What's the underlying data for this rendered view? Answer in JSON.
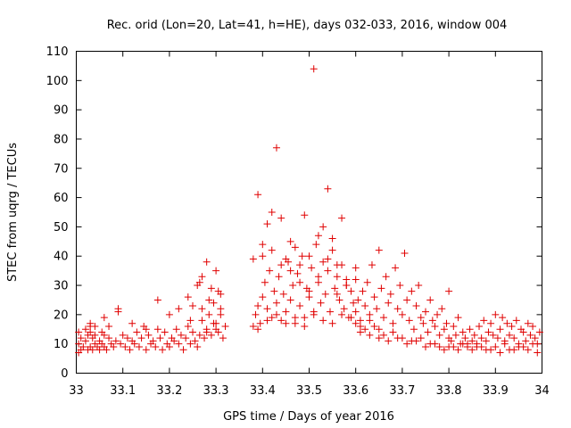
{
  "chart_data": {
    "type": "scatter",
    "title": "Rec. orid (Lon=20, Lat=41, h=HE), days 032-033, 2016, window 004",
    "xlabel": "GPS time / Days of year 2016",
    "ylabel": "STEC from uqrg / TECUs",
    "xlim": [
      33,
      34
    ],
    "ylim": [
      0,
      110
    ],
    "xticks": [
      "33",
      "33.1",
      "33.2",
      "33.3",
      "33.4",
      "33.5",
      "33.6",
      "33.7",
      "33.8",
      "33.9",
      "34"
    ],
    "yticks": [
      "0",
      "10",
      "20",
      "30",
      "40",
      "50",
      "60",
      "70",
      "80",
      "90",
      "100",
      "110"
    ],
    "grid": false,
    "legend": "none",
    "marker": "plus",
    "color": "#e00000",
    "series": [
      {
        "x": [
          33.005,
          33.005,
          33.005,
          33.01,
          33.01,
          33.015,
          33.02,
          33.02,
          33.025,
          33.025,
          33.03,
          33.03,
          33.03,
          33.035,
          33.035,
          33.04,
          33.04,
          33.04,
          33.045,
          33.05,
          33.05,
          33.055,
          33.055,
          33.06,
          33.06,
          33.065,
          33.07,
          33.07,
          33.075,
          33.08,
          33.085,
          33.09,
          33.095,
          33.1,
          33.105,
          33.11,
          33.115,
          33.12,
          33.125,
          33.13,
          33.135,
          33.14,
          33.145,
          33.15,
          33.155,
          33.16,
          33.165,
          33.17,
          33.175,
          33.18,
          33.185,
          33.19,
          33.195,
          33.2,
          33.205,
          33.21,
          33.215,
          33.22,
          33.225,
          33.23,
          33.235,
          33.24,
          33.245,
          33.25,
          33.255,
          33.26,
          33.265,
          33.27,
          33.275,
          33.28,
          33.285,
          33.29,
          33.295,
          33.3,
          33.305,
          33.31,
          33.315,
          33.32
        ],
        "y": [
          7,
          10,
          14,
          8,
          12,
          9,
          11,
          15,
          8,
          13,
          9,
          14,
          17,
          8,
          12,
          10,
          13,
          16,
          9,
          8,
          11,
          10,
          14,
          9,
          13,
          8,
          12,
          16,
          10,
          9,
          11,
          22,
          10,
          13,
          9,
          12,
          8,
          11,
          10,
          14,
          9,
          12,
          16,
          8,
          13,
          10,
          11,
          9,
          15,
          12,
          8,
          14,
          10,
          9,
          12,
          11,
          15,
          10,
          13,
          8,
          12,
          16,
          10,
          14,
          11,
          9,
          13,
          18,
          12,
          15,
          20,
          13,
          24,
          17,
          14,
          22,
          12,
          16
        ],
        "name": ""
      },
      {
        "x": [
          33.03,
          33.06,
          33.09,
          33.12,
          33.15,
          33.175,
          33.2,
          33.22,
          33.24,
          33.26,
          33.27,
          33.28,
          33.29,
          33.3,
          33.31,
          33.25,
          33.265,
          33.285,
          33.305,
          33.28,
          33.295,
          33.31,
          33.245,
          33.27,
          33.3
        ],
        "y": [
          16,
          19,
          21,
          17,
          15,
          25,
          20,
          22,
          26,
          30,
          33,
          38,
          29,
          35,
          27,
          23,
          31,
          25,
          28,
          14,
          17,
          20,
          18,
          22,
          15
        ],
        "name": ""
      },
      {
        "x": [
          33.38,
          33.385,
          33.39,
          33.395,
          33.4,
          33.405,
          33.41,
          33.415,
          33.42,
          33.425,
          33.43,
          33.435,
          33.44,
          33.445,
          33.45,
          33.455,
          33.46,
          33.465,
          33.47,
          33.475,
          33.48,
          33.485,
          33.49,
          33.495,
          33.5,
          33.505,
          33.51,
          33.515,
          33.52,
          33.525,
          33.53,
          33.535,
          33.54,
          33.545,
          33.55,
          33.555,
          33.56,
          33.565,
          33.57,
          33.575,
          33.58,
          33.585,
          33.59,
          33.595,
          33.6
        ],
        "y": [
          16,
          20,
          23,
          17,
          26,
          31,
          22,
          35,
          19,
          28,
          24,
          33,
          18,
          27,
          21,
          38,
          25,
          30,
          17,
          34,
          23,
          40,
          19,
          29,
          26,
          36,
          20,
          44,
          31,
          24,
          38,
          27,
          35,
          21,
          42,
          29,
          33,
          25,
          37,
          22,
          30,
          19,
          28,
          24,
          32
        ],
        "name": ""
      },
      {
        "x": [
          33.38,
          33.39,
          33.4,
          33.41,
          33.42,
          33.43,
          33.44,
          33.45,
          33.46,
          33.47,
          33.48,
          33.49,
          33.5,
          33.51,
          33.52,
          33.53,
          33.54,
          33.55,
          33.56,
          33.57,
          33.58,
          33.4,
          33.42,
          33.44,
          33.46,
          33.48,
          33.5,
          33.52,
          33.54,
          33.56,
          33.58,
          33.6
        ],
        "y": [
          39,
          61,
          44,
          51,
          55,
          77,
          53,
          39,
          45,
          43,
          37,
          54,
          40,
          104,
          47,
          50,
          63,
          46,
          37,
          53,
          32,
          40,
          42,
          37,
          35,
          31,
          28,
          33,
          39,
          27,
          30,
          36
        ],
        "name": ""
      },
      {
        "x": [
          33.39,
          33.41,
          33.43,
          33.45,
          33.47,
          33.49,
          33.51,
          33.53,
          33.55,
          33.57,
          33.59,
          33.61,
          33.63,
          33.65
        ],
        "y": [
          15,
          18,
          20,
          17,
          19,
          16,
          21,
          18,
          17,
          20,
          19,
          16,
          18,
          15
        ],
        "name": ""
      },
      {
        "x": [
          33.6,
          33.605,
          33.61,
          33.615,
          33.62,
          33.625,
          33.63,
          33.635,
          33.64,
          33.645,
          33.65,
          33.655,
          33.66,
          33.665,
          33.67,
          33.675,
          33.68,
          33.685,
          33.69,
          33.695,
          33.7,
          33.705,
          33.71,
          33.715,
          33.72,
          33.725,
          33.73,
          33.735,
          33.74,
          33.745,
          33.75,
          33.755,
          33.76,
          33.765,
          33.77,
          33.775,
          33.78,
          33.785,
          33.79,
          33.795,
          33.8
        ],
        "y": [
          21,
          25,
          18,
          28,
          23,
          31,
          20,
          37,
          26,
          22,
          42,
          29,
          19,
          33,
          24,
          27,
          17,
          36,
          22,
          30,
          20,
          41,
          25,
          18,
          28,
          15,
          23,
          30,
          19,
          17,
          21,
          14,
          25,
          18,
          16,
          20,
          13,
          22,
          15,
          17,
          12
        ],
        "name": ""
      },
      {
        "x": [
          33.6,
          33.62,
          33.64,
          33.66,
          33.68,
          33.7,
          33.72,
          33.74,
          33.76,
          33.78,
          33.8,
          33.82,
          33.84,
          33.86,
          33.88,
          33.9,
          33.92,
          33.94,
          33.96,
          33.98,
          33.61,
          33.63,
          33.65,
          33.67,
          33.69,
          33.71,
          33.73,
          33.75,
          33.77,
          33.79,
          33.81,
          33.83,
          33.85,
          33.87,
          33.89,
          33.91,
          33.93,
          33.95,
          33.97,
          33.99
        ],
        "y": [
          17,
          15,
          16,
          13,
          14,
          12,
          11,
          12,
          10,
          9,
          9,
          8,
          10,
          9,
          8,
          9,
          10,
          8,
          9,
          10,
          14,
          13,
          12,
          11,
          12,
          10,
          11,
          9,
          10,
          8,
          9,
          10,
          8,
          9,
          8,
          7,
          8,
          9,
          8,
          7
        ],
        "name": ""
      },
      {
        "x": [
          33.8,
          33.805,
          33.81,
          33.815,
          33.82,
          33.825,
          33.83,
          33.835,
          33.84,
          33.845,
          33.85,
          33.855,
          33.86,
          33.865,
          33.87,
          33.875,
          33.88,
          33.885,
          33.89,
          33.895,
          33.9,
          33.905,
          33.91,
          33.915,
          33.92,
          33.925,
          33.93,
          33.935,
          33.94,
          33.945,
          33.95,
          33.955,
          33.96,
          33.965,
          33.97,
          33.975,
          33.98,
          33.985,
          33.99,
          33.995
        ],
        "y": [
          28,
          11,
          16,
          13,
          19,
          10,
          14,
          12,
          9,
          15,
          11,
          13,
          10,
          16,
          12,
          18,
          11,
          14,
          17,
          13,
          20,
          12,
          15,
          19,
          11,
          17,
          13,
          16,
          12,
          18,
          10,
          15,
          14,
          11,
          17,
          13,
          16,
          12,
          10,
          14
        ],
        "name": ""
      }
    ]
  }
}
